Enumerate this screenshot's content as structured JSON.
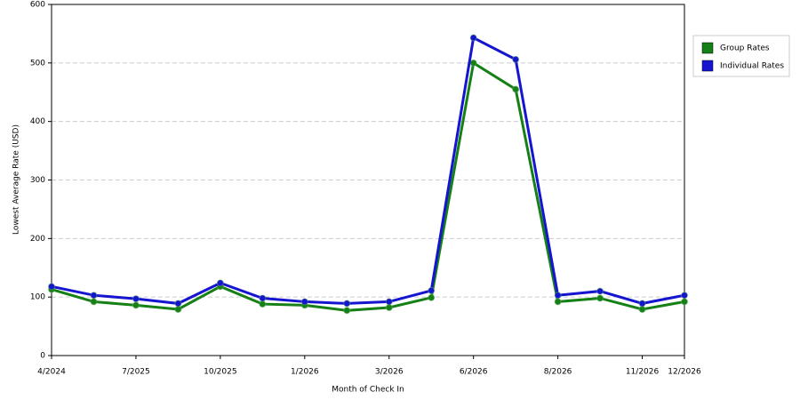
{
  "chart_data": {
    "type": "line",
    "x_label": "Month of Check In",
    "y_label": "Lowest Average Rate (USD)",
    "categories": [
      "4/2024",
      null,
      "7/2025",
      null,
      "10/2025",
      null,
      "1/2026",
      null,
      "3/2026",
      null,
      "6/2026",
      null,
      "8/2026",
      null,
      "11/2026",
      "12/2026"
    ],
    "series": [
      {
        "name": "Group Rates",
        "color": "#158015",
        "values": [
          113,
          92,
          86,
          79,
          118,
          88,
          86,
          77,
          82,
          99,
          500,
          455,
          92,
          98,
          79,
          92
        ]
      },
      {
        "name": "Individual Rates",
        "color": "#1515d0",
        "values": [
          118,
          103,
          97,
          89,
          124,
          98,
          92,
          89,
          92,
          111,
          543,
          506,
          103,
          110,
          89,
          103
        ]
      }
    ],
    "ylim": [
      0,
      600
    ],
    "yticks": [
      0,
      100,
      200,
      300,
      400,
      500,
      600
    ],
    "grid": true,
    "legend": "right"
  }
}
